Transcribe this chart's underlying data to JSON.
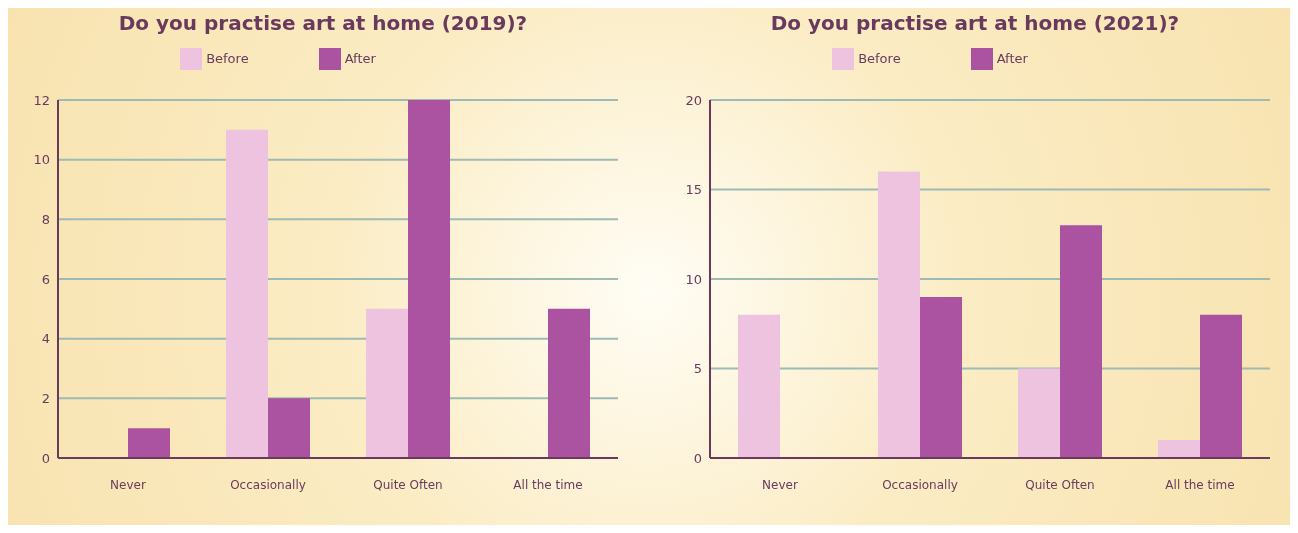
{
  "chart_data": [
    {
      "type": "bar",
      "title": "Do you practise art at home (2019)?",
      "categories": [
        "Never",
        "Occasionally",
        "Quite Often",
        "All the time"
      ],
      "series": [
        {
          "name": "Before",
          "color": "#edc3e0",
          "values": [
            0,
            11,
            5,
            0
          ]
        },
        {
          "name": "After",
          "color": "#ab52a0",
          "values": [
            1,
            2,
            12,
            5
          ]
        }
      ],
      "ylim": [
        0,
        12
      ],
      "yticks": [
        0,
        2,
        4,
        6,
        8,
        10,
        12
      ],
      "grid": "y",
      "legend": "top"
    },
    {
      "type": "bar",
      "title": "Do you practise art at home (2021)?",
      "categories": [
        "Never",
        "Occasionally",
        "Quite Often",
        "All the time"
      ],
      "series": [
        {
          "name": "Before",
          "color": "#edc3e0",
          "values": [
            8,
            16,
            5,
            1
          ]
        },
        {
          "name": "After",
          "color": "#ab52a0",
          "values": [
            0,
            9,
            13,
            8
          ]
        }
      ],
      "ylim": [
        0,
        20
      ],
      "yticks": [
        0,
        5,
        10,
        15,
        20
      ],
      "grid": "y",
      "legend": "top"
    }
  ]
}
